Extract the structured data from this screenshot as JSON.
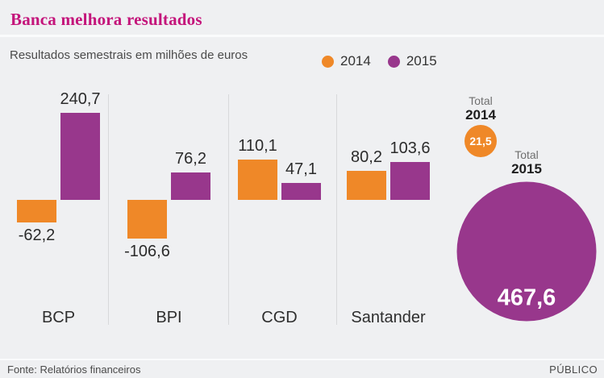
{
  "header": {
    "title": "Banca melhora resultados"
  },
  "subtitle": "Resultados semestrais em milhões de euros",
  "footer": {
    "source": "Fonte: Relatórios financeiros",
    "brand": "PÚBLICO"
  },
  "colors": {
    "accent_title": "#C4157B",
    "series_2014": "#EF8828",
    "series_2015": "#98378C",
    "background": "#EFF0F2"
  },
  "chart_data": {
    "type": "bar",
    "title": "Banca melhora resultados",
    "subtitle": "Resultados semestrais em milhões de euros",
    "unit": "milhões de euros",
    "decimal_separator": ",",
    "grid": false,
    "legend_position": "top-right",
    "ylim": [
      -120,
      250
    ],
    "categories": [
      "BCP",
      "BPI",
      "CGD",
      "Santander"
    ],
    "series": [
      {
        "name": "2014",
        "color": "#EF8828",
        "values": [
          -62.2,
          -106.6,
          110.1,
          80.2
        ]
      },
      {
        "name": "2015",
        "color": "#98378C",
        "values": [
          240.7,
          76.2,
          47.1,
          103.6
        ]
      }
    ],
    "totals": [
      {
        "title": "Total",
        "year": "2014",
        "value": 21.5,
        "color": "#EF8828"
      },
      {
        "title": "Total",
        "year": "2015",
        "value": 467.6,
        "color": "#98378C"
      }
    ]
  }
}
